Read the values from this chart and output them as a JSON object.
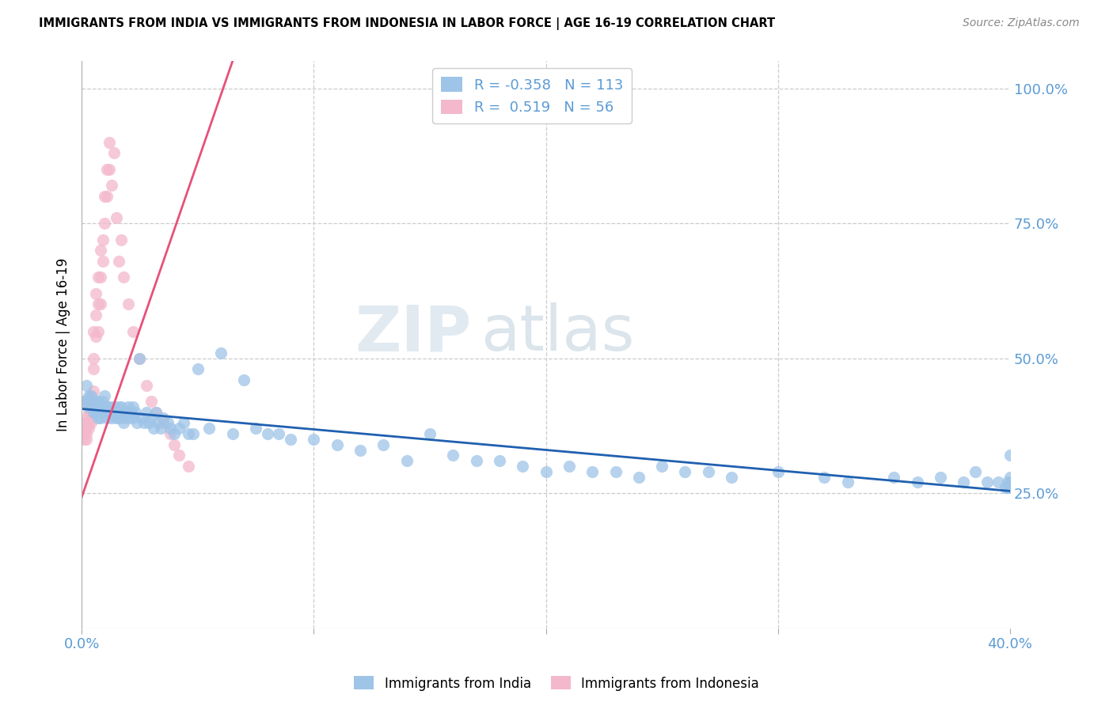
{
  "title": "IMMIGRANTS FROM INDIA VS IMMIGRANTS FROM INDONESIA IN LABOR FORCE | AGE 16-19 CORRELATION CHART",
  "source": "Source: ZipAtlas.com",
  "ylabel": "In Labor Force | Age 16-19",
  "ylabel_right_ticks": [
    "100.0%",
    "75.0%",
    "50.0%",
    "25.0%"
  ],
  "ylabel_right_values": [
    1.0,
    0.75,
    0.5,
    0.25
  ],
  "xlim": [
    0.0,
    0.4
  ],
  "ylim": [
    0.0,
    1.05
  ],
  "india_R": -0.358,
  "india_N": 113,
  "indonesia_R": 0.519,
  "indonesia_N": 56,
  "india_color": "#9ec4e8",
  "indonesia_color": "#f4b8cc",
  "india_line_color": "#2060b0",
  "indonesia_line_color": "#e8507a",
  "watermark_zip": "ZIP",
  "watermark_atlas": "atlas",
  "india_scatter_x": [
    0.001,
    0.002,
    0.002,
    0.003,
    0.003,
    0.003,
    0.004,
    0.004,
    0.005,
    0.005,
    0.005,
    0.006,
    0.006,
    0.006,
    0.007,
    0.007,
    0.007,
    0.007,
    0.008,
    0.008,
    0.008,
    0.009,
    0.009,
    0.01,
    0.01,
    0.01,
    0.011,
    0.011,
    0.012,
    0.012,
    0.013,
    0.013,
    0.014,
    0.014,
    0.015,
    0.015,
    0.016,
    0.016,
    0.017,
    0.017,
    0.018,
    0.018,
    0.019,
    0.02,
    0.02,
    0.021,
    0.022,
    0.022,
    0.023,
    0.024,
    0.025,
    0.026,
    0.027,
    0.028,
    0.029,
    0.03,
    0.031,
    0.032,
    0.033,
    0.034,
    0.035,
    0.037,
    0.038,
    0.04,
    0.042,
    0.044,
    0.046,
    0.048,
    0.05,
    0.055,
    0.06,
    0.065,
    0.07,
    0.075,
    0.08,
    0.085,
    0.09,
    0.1,
    0.11,
    0.12,
    0.13,
    0.14,
    0.15,
    0.16,
    0.17,
    0.18,
    0.19,
    0.2,
    0.21,
    0.22,
    0.23,
    0.24,
    0.25,
    0.26,
    0.27,
    0.28,
    0.3,
    0.32,
    0.33,
    0.35,
    0.36,
    0.37,
    0.38,
    0.385,
    0.39,
    0.395,
    0.398,
    0.399,
    0.399,
    0.4,
    0.4,
    0.4,
    0.4
  ],
  "india_scatter_y": [
    0.42,
    0.45,
    0.42,
    0.42,
    0.43,
    0.41,
    0.42,
    0.43,
    0.41,
    0.42,
    0.4,
    0.41,
    0.4,
    0.42,
    0.41,
    0.4,
    0.42,
    0.39,
    0.41,
    0.4,
    0.39,
    0.42,
    0.4,
    0.41,
    0.43,
    0.4,
    0.41,
    0.39,
    0.4,
    0.41,
    0.4,
    0.39,
    0.41,
    0.4,
    0.4,
    0.39,
    0.41,
    0.39,
    0.4,
    0.41,
    0.39,
    0.38,
    0.4,
    0.39,
    0.41,
    0.4,
    0.39,
    0.41,
    0.4,
    0.38,
    0.5,
    0.39,
    0.38,
    0.4,
    0.38,
    0.39,
    0.37,
    0.4,
    0.38,
    0.37,
    0.39,
    0.38,
    0.37,
    0.36,
    0.37,
    0.38,
    0.36,
    0.36,
    0.48,
    0.37,
    0.51,
    0.36,
    0.46,
    0.37,
    0.36,
    0.36,
    0.35,
    0.35,
    0.34,
    0.33,
    0.34,
    0.31,
    0.36,
    0.32,
    0.31,
    0.31,
    0.3,
    0.29,
    0.3,
    0.29,
    0.29,
    0.28,
    0.3,
    0.29,
    0.29,
    0.28,
    0.29,
    0.28,
    0.27,
    0.28,
    0.27,
    0.28,
    0.27,
    0.29,
    0.27,
    0.27,
    0.26,
    0.27,
    0.26,
    0.32,
    0.28,
    0.27,
    0.26
  ],
  "indonesia_scatter_x": [
    0.001,
    0.001,
    0.001,
    0.001,
    0.002,
    0.002,
    0.002,
    0.002,
    0.002,
    0.003,
    0.003,
    0.003,
    0.003,
    0.004,
    0.004,
    0.004,
    0.004,
    0.005,
    0.005,
    0.005,
    0.005,
    0.005,
    0.006,
    0.006,
    0.006,
    0.007,
    0.007,
    0.007,
    0.008,
    0.008,
    0.008,
    0.009,
    0.009,
    0.01,
    0.01,
    0.011,
    0.011,
    0.012,
    0.012,
    0.013,
    0.014,
    0.015,
    0.016,
    0.017,
    0.018,
    0.02,
    0.022,
    0.025,
    0.028,
    0.03,
    0.032,
    0.035,
    0.038,
    0.04,
    0.042,
    0.046
  ],
  "indonesia_scatter_y": [
    0.37,
    0.38,
    0.36,
    0.35,
    0.39,
    0.38,
    0.37,
    0.36,
    0.35,
    0.41,
    0.4,
    0.38,
    0.37,
    0.43,
    0.42,
    0.4,
    0.38,
    0.5,
    0.55,
    0.48,
    0.44,
    0.42,
    0.62,
    0.58,
    0.54,
    0.65,
    0.6,
    0.55,
    0.7,
    0.65,
    0.6,
    0.72,
    0.68,
    0.8,
    0.75,
    0.85,
    0.8,
    0.9,
    0.85,
    0.82,
    0.88,
    0.76,
    0.68,
    0.72,
    0.65,
    0.6,
    0.55,
    0.5,
    0.45,
    0.42,
    0.4,
    0.38,
    0.36,
    0.34,
    0.32,
    0.3
  ],
  "indonesia_line_x0": -0.005,
  "indonesia_line_x1": 0.065,
  "indonesia_line_y0": 0.18,
  "indonesia_line_y1": 1.05
}
